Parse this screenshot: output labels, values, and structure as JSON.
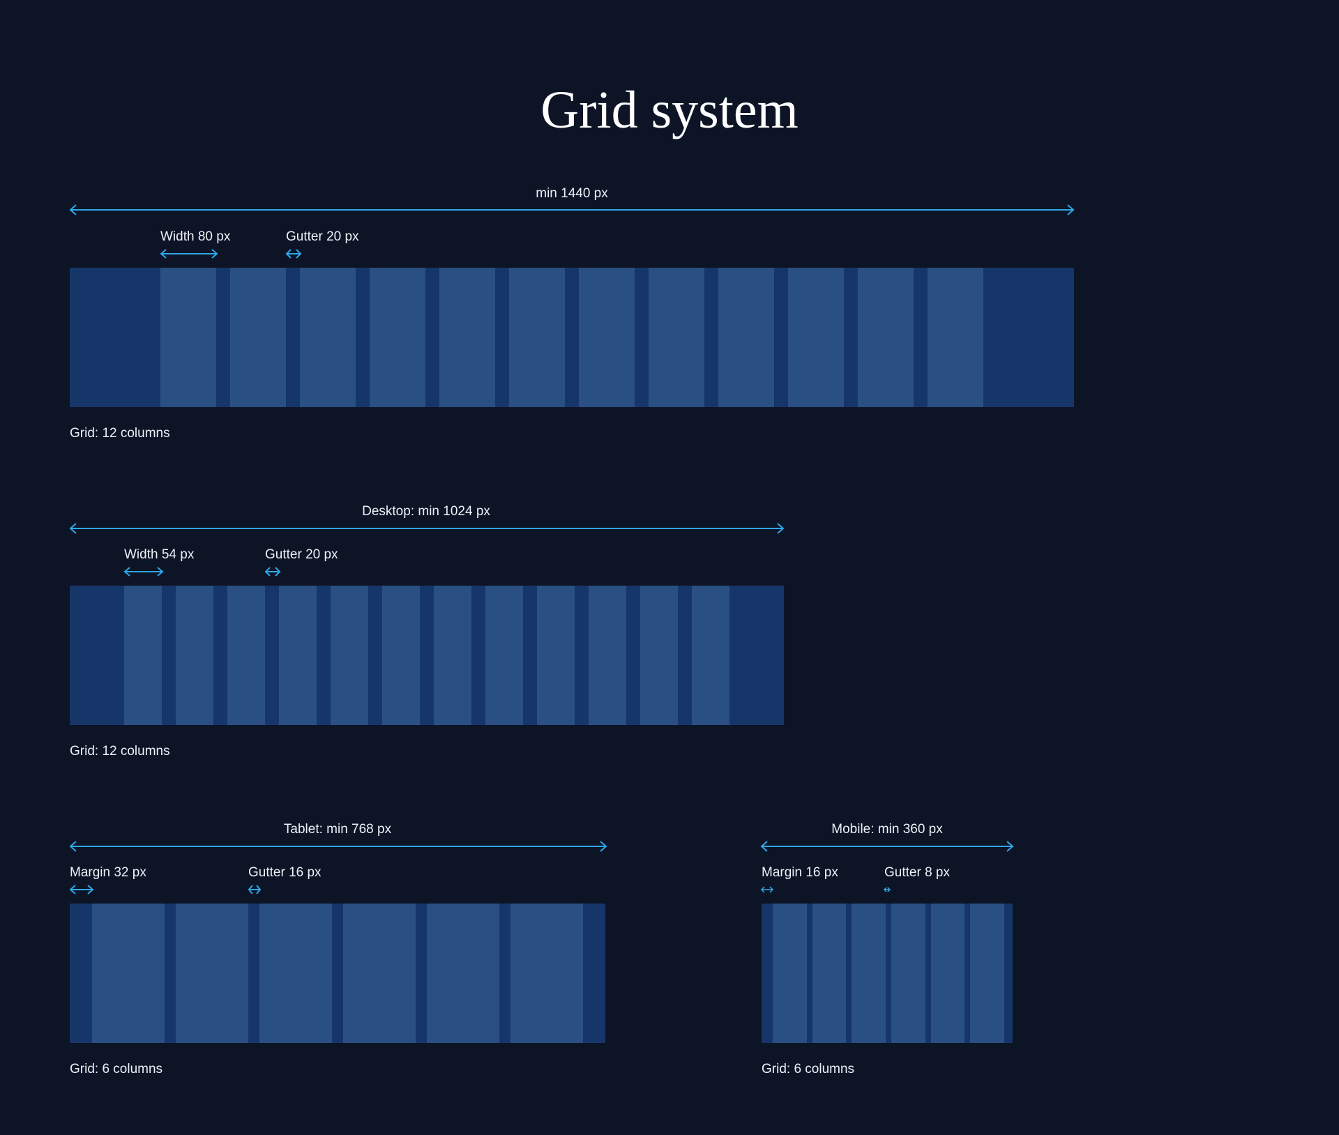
{
  "title": "Grid system",
  "colors": {
    "background": "#0d1426",
    "band": "#16366a",
    "column": "#2a4f83",
    "arrow": "#2ea8ea"
  },
  "grids": {
    "wide": {
      "heading": "min 1440 px",
      "width_label": "Width 80 px",
      "gutter_label": "Gutter 20 px",
      "caption": "Grid: 12 columns",
      "columns": 12
    },
    "desktop": {
      "heading": "Desktop: min 1024 px",
      "width_label": "Width 54 px",
      "gutter_label": "Gutter 20 px",
      "caption": "Grid: 12 columns",
      "columns": 12
    },
    "tablet": {
      "heading": "Tablet: min 768 px",
      "margin_label": "Margin 32 px",
      "gutter_label": "Gutter 16 px",
      "caption": "Grid: 6 columns",
      "columns": 6
    },
    "mobile": {
      "heading": "Mobile: min 360 px",
      "margin_label": "Margin 16 px",
      "gutter_label": "Gutter 8 px",
      "caption": "Grid: 6 columns",
      "columns": 6
    }
  }
}
